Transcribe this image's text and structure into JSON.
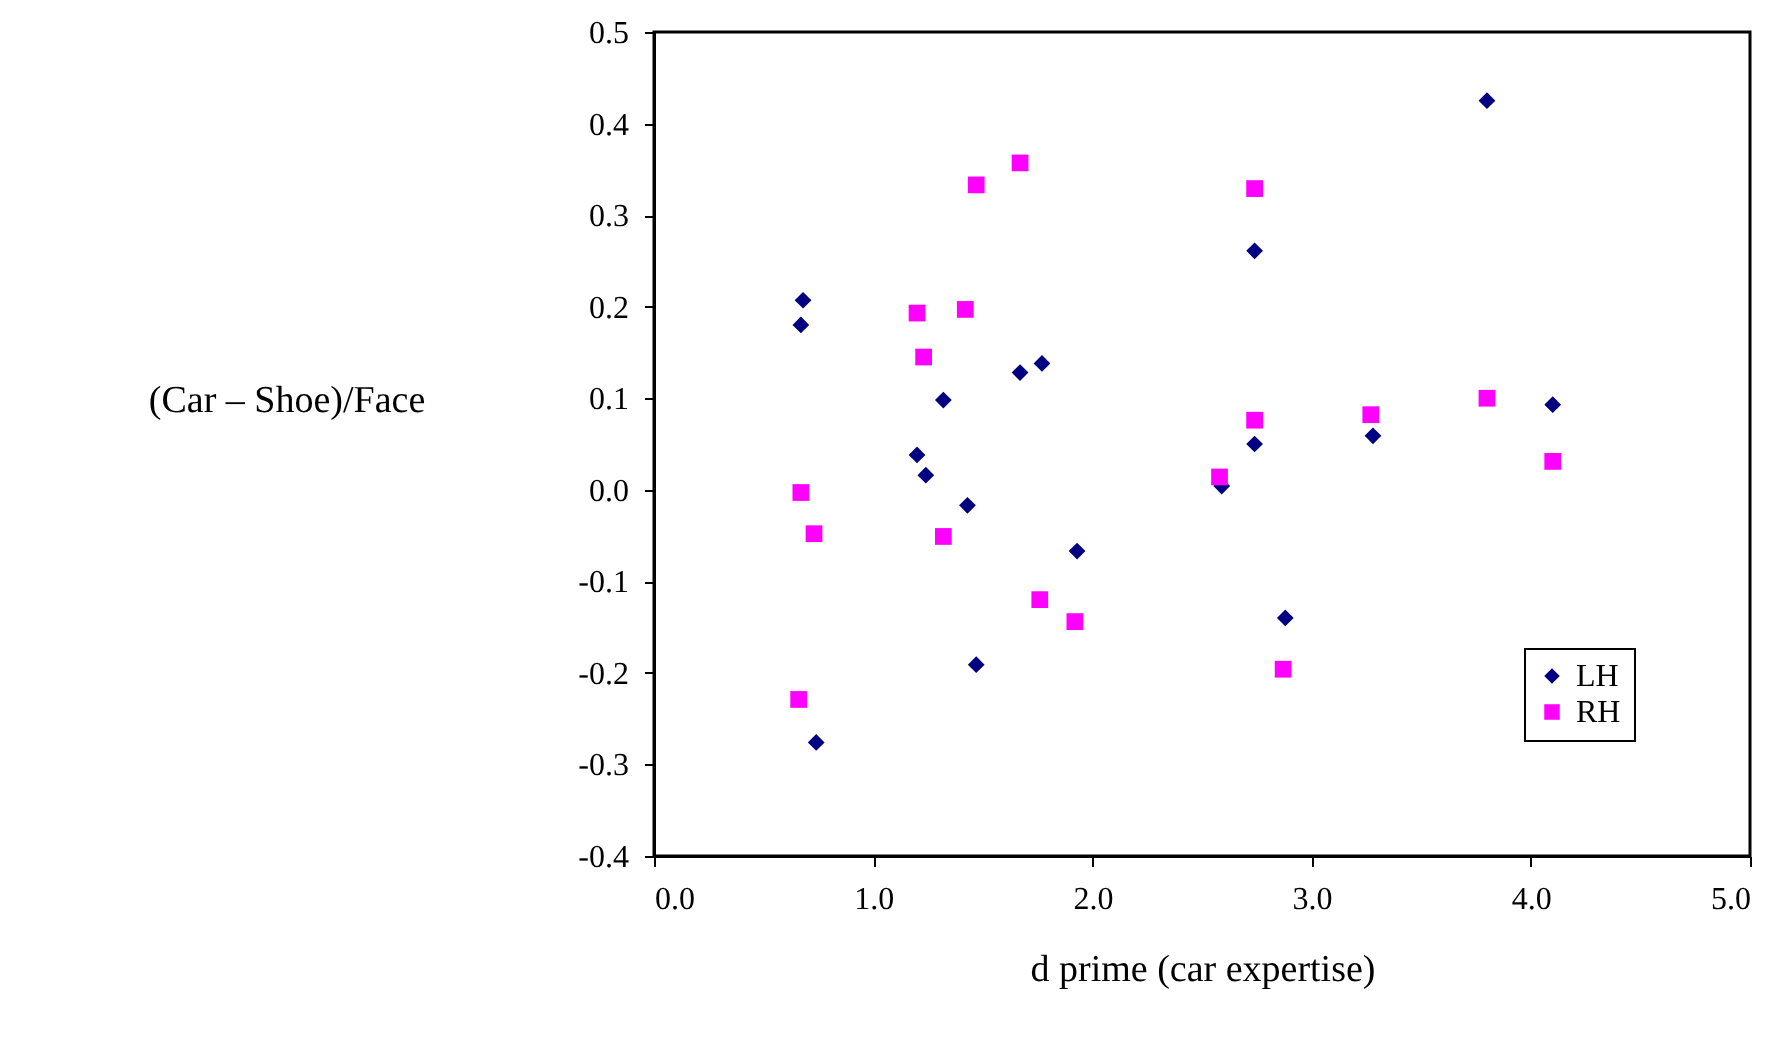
{
  "chart_data": {
    "type": "scatter",
    "xlabel": "d prime (car expertise)",
    "ylabel": "(Car – Shoe)/Face",
    "xlim": [
      0,
      5
    ],
    "xticks": [
      {
        "value": 0,
        "label": "0.0"
      },
      {
        "value": 1,
        "label": "1.0"
      },
      {
        "value": 2,
        "label": "2.0"
      },
      {
        "value": 3,
        "label": "3.0"
      },
      {
        "value": 4,
        "label": "4.0"
      },
      {
        "value": 5,
        "label": "5.0"
      }
    ],
    "ylim": [
      -0.4,
      0.5
    ],
    "yticks": [
      {
        "value": -0.4,
        "label": "-0.4"
      },
      {
        "value": -0.3,
        "label": "-0.3"
      },
      {
        "value": -0.2,
        "label": "-0.2"
      },
      {
        "value": -0.1,
        "label": "-0.1"
      },
      {
        "value": 0,
        "label": "0.0"
      },
      {
        "value": 0.1,
        "label": "0.1"
      },
      {
        "value": 0.2,
        "label": "0.2"
      },
      {
        "value": 0.3,
        "label": "0.3"
      },
      {
        "value": 0.4,
        "label": "0.4"
      },
      {
        "value": 0.5,
        "label": "0.5"
      }
    ],
    "grid": false,
    "legend": "bottom right",
    "series": [
      {
        "name": "LH",
        "color": "#000080",
        "marker": "diamond",
        "x": [
          0.68,
          0.67,
          1.32,
          1.2,
          1.24,
          1.43,
          1.67,
          1.77,
          1.93,
          1.47,
          0.74,
          3.8,
          2.74,
          2.74,
          2.59,
          3.28,
          4.1,
          2.88
        ],
        "values": [
          0.207,
          0.18,
          0.098,
          0.038,
          0.016,
          -0.017,
          0.128,
          0.138,
          -0.067,
          -0.191,
          -0.276,
          0.425,
          0.261,
          0.05,
          0.004,
          0.059,
          0.093,
          -0.14
        ]
      },
      {
        "name": "RH",
        "color": "#ff00ff",
        "marker": "square",
        "x": [
          1.67,
          1.47,
          1.2,
          1.42,
          1.23,
          0.67,
          0.73,
          1.32,
          1.76,
          1.92,
          0.66,
          2.74,
          2.74,
          2.58,
          3.27,
          3.8,
          4.1,
          2.87
        ],
        "values": [
          0.357,
          0.333,
          0.193,
          0.197,
          0.145,
          -0.003,
          -0.048,
          -0.051,
          -0.12,
          -0.144,
          -0.229,
          0.329,
          0.076,
          0.014,
          0.082,
          0.1,
          0.031,
          -0.196
        ]
      }
    ]
  }
}
